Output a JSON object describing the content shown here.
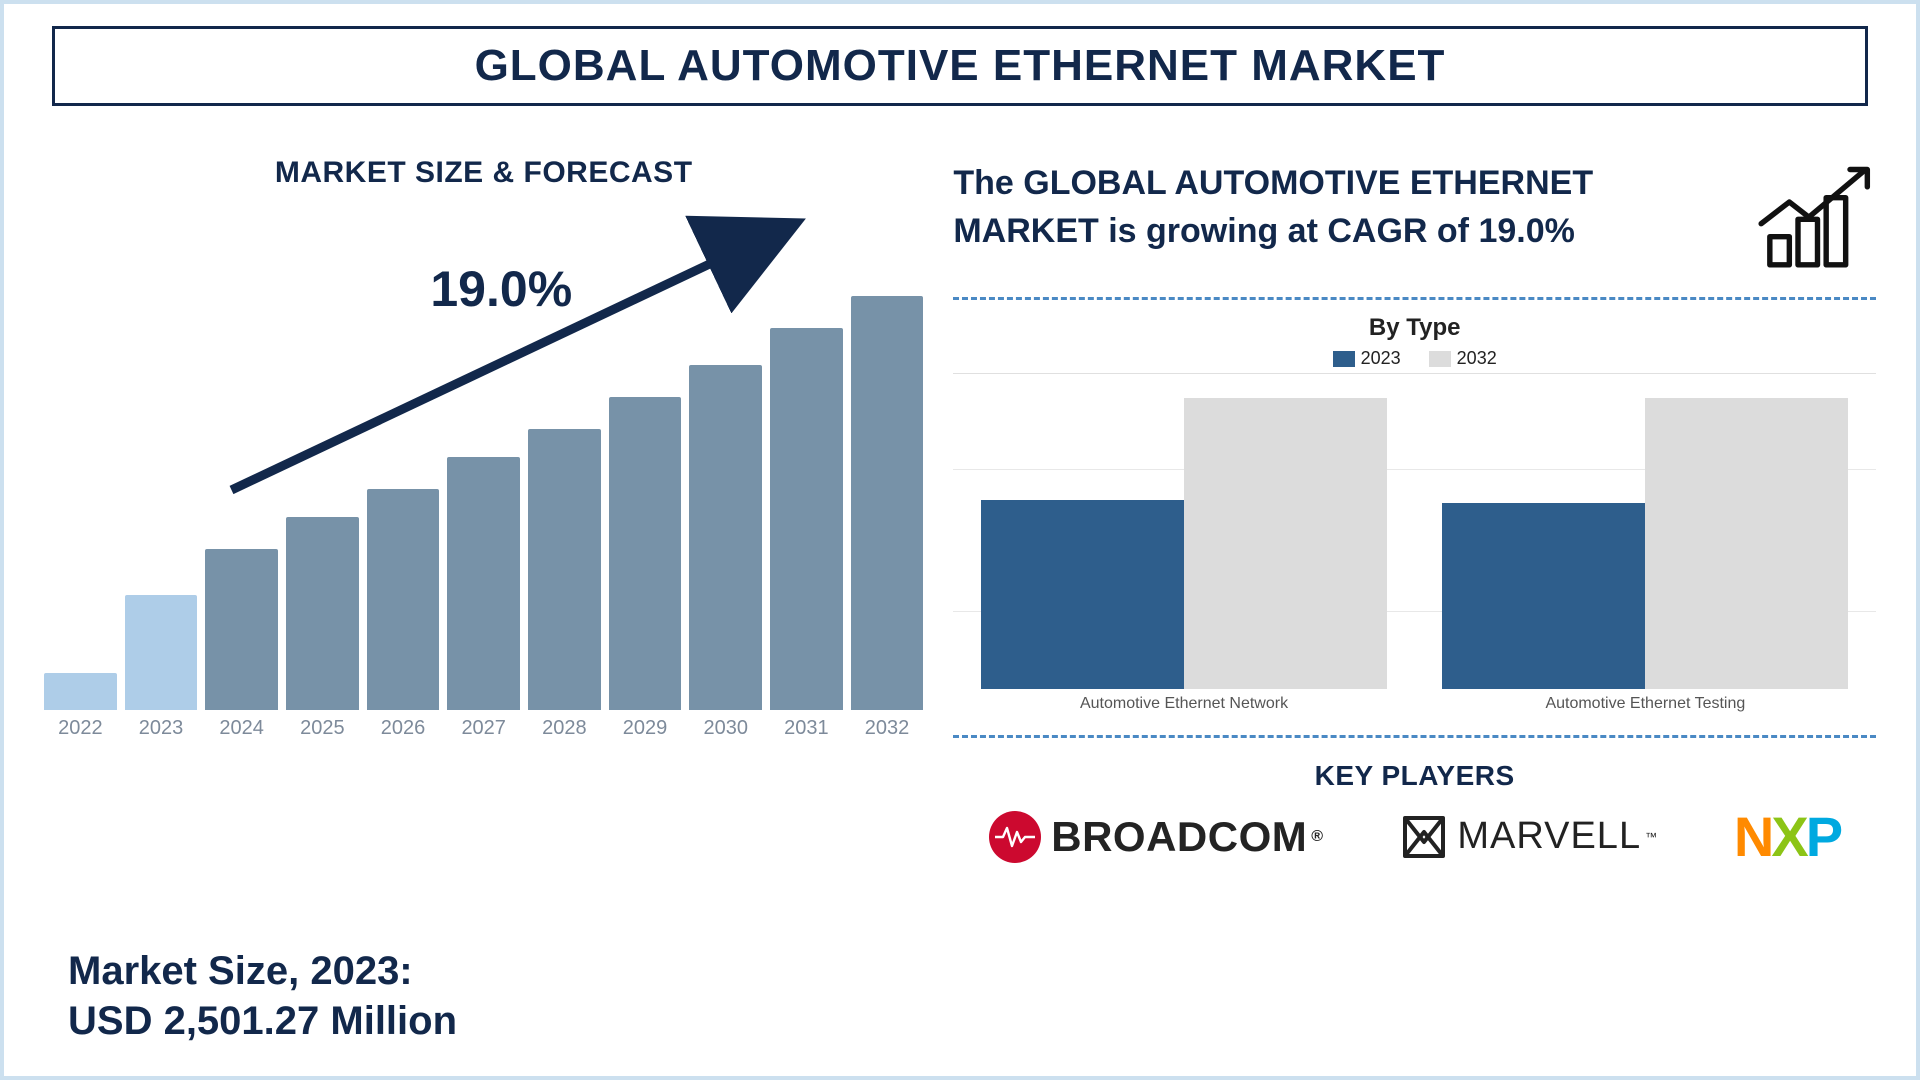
{
  "title": "GLOBAL AUTOMOTIVE ETHERNET MARKET",
  "left": {
    "forecast_title": "MARKET SIZE & FORECAST",
    "cagr_label": "19.0%",
    "market_size_line1": "Market Size, 2023:",
    "market_size_line2": "USD 2,501.27 Million",
    "forecast_chart": {
      "type": "bar",
      "years": [
        "2022",
        "2023",
        "2024",
        "2025",
        "2026",
        "2027",
        "2028",
        "2029",
        "2030",
        "2031",
        "2032"
      ],
      "values": [
        8,
        25,
        35,
        42,
        48,
        55,
        61,
        68,
        75,
        83,
        90
      ],
      "bar_colors": [
        "#aecde8",
        "#aecde8",
        "#7792a8",
        "#7792a8",
        "#7792a8",
        "#7792a8",
        "#7792a8",
        "#7792a8",
        "#7792a8",
        "#7792a8",
        "#7792a8"
      ],
      "y_max": 100,
      "arrow_color": "#12284b",
      "year_label_color": "#7d8a9a",
      "year_label_fontsize": 20
    }
  },
  "right": {
    "growth_text": "The GLOBAL AUTOMOTIVE ETHERNET MARKET is growing at CAGR of 19.0%",
    "by_type": {
      "title": "By Type",
      "legend": [
        {
          "label": "2023",
          "color": "#2e5e8c"
        },
        {
          "label": "2032",
          "color": "#dcdcdc"
        }
      ],
      "categories": [
        "Automotive Ethernet Network",
        "Automotive Ethernet Testing"
      ],
      "series_2023": [
        65,
        64
      ],
      "series_2032": [
        100,
        100
      ],
      "grid_color": "#e8e8e8",
      "grid_positions_pct": [
        28,
        70
      ]
    },
    "key_players_title": "KEY PLAYERS",
    "logos": {
      "broadcom": "BROADCOM",
      "marvell": "MARVELL",
      "nxp_n": "N",
      "nxp_x": "X",
      "nxp_p": "P"
    },
    "divider_color": "#4a89c4"
  },
  "colors": {
    "frame_border": "#cce0ef",
    "title_border": "#12284b",
    "text_primary": "#12284b"
  }
}
